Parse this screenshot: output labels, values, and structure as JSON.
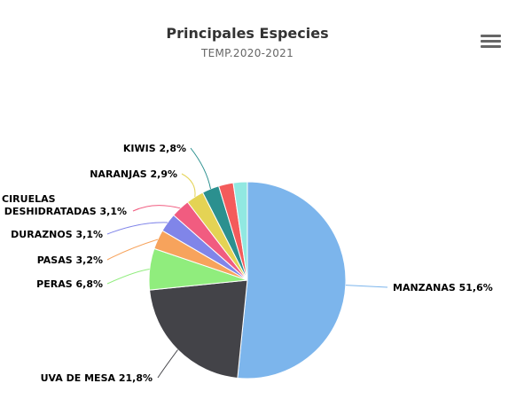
{
  "chart_data": {
    "type": "pie",
    "title": "Principales Especies",
    "subtitle": "TEMP.2020-2021",
    "series": [
      {
        "name": "",
        "points": [
          {
            "label": "MANZANAS 51,6%",
            "value": 51.6,
            "color": "#7cb5ec"
          },
          {
            "label": "UVA DE MESA 21,8%",
            "value": 21.8,
            "color": "#434348"
          },
          {
            "label": "PERAS 6,8%",
            "value": 6.8,
            "color": "#90ed7d"
          },
          {
            "label": "PASAS 3,2%",
            "value": 3.2,
            "color": "#f7a35c"
          },
          {
            "label": "DURAZNOS 3,1%",
            "value": 3.1,
            "color": "#8085e9"
          },
          {
            "label": [
              "CIRUELAS",
              "DESHIDRATADAS 3,1%"
            ],
            "value": 3.1,
            "color": "#f15c80"
          },
          {
            "label": "NARANJAS 2,9%",
            "value": 2.9,
            "color": "#e4d354"
          },
          {
            "label": "KIWIS 2,8%",
            "value": 2.8,
            "color": "#2b908f"
          },
          {
            "label": "",
            "value": 2.4,
            "color": "#f45b5b"
          },
          {
            "label": "",
            "value": 2.3,
            "color": "#91e8e1"
          }
        ]
      }
    ],
    "legend": "none"
  },
  "menu_icon": "hamburger-menu-icon"
}
